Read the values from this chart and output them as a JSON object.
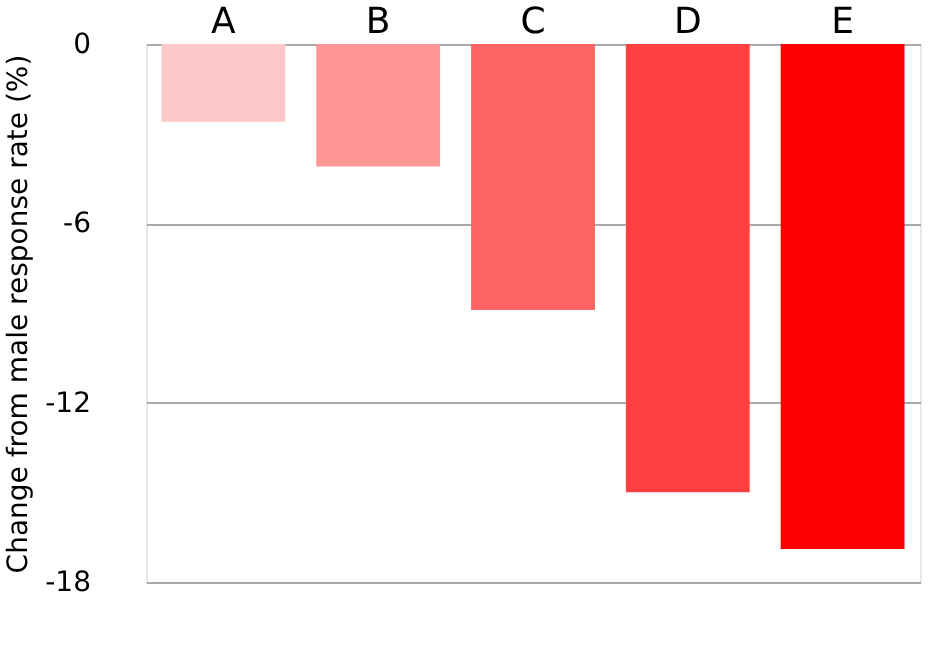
{
  "chart_data": {
    "type": "bar",
    "ylabel": "Change from male response rate (%)",
    "categories": [
      "A",
      "B",
      "C",
      "D",
      "E"
    ],
    "values": [
      -2.6,
      -4.1,
      -8.9,
      -15.0,
      -16.9
    ],
    "colors": [
      "#ffc8c8",
      "#ff9696",
      "#ff6464",
      "#ff4040",
      "#ff0000"
    ],
    "ylim": [
      -18,
      0
    ],
    "yticks": [
      0,
      -6,
      -12,
      -18
    ],
    "grid": "y"
  }
}
